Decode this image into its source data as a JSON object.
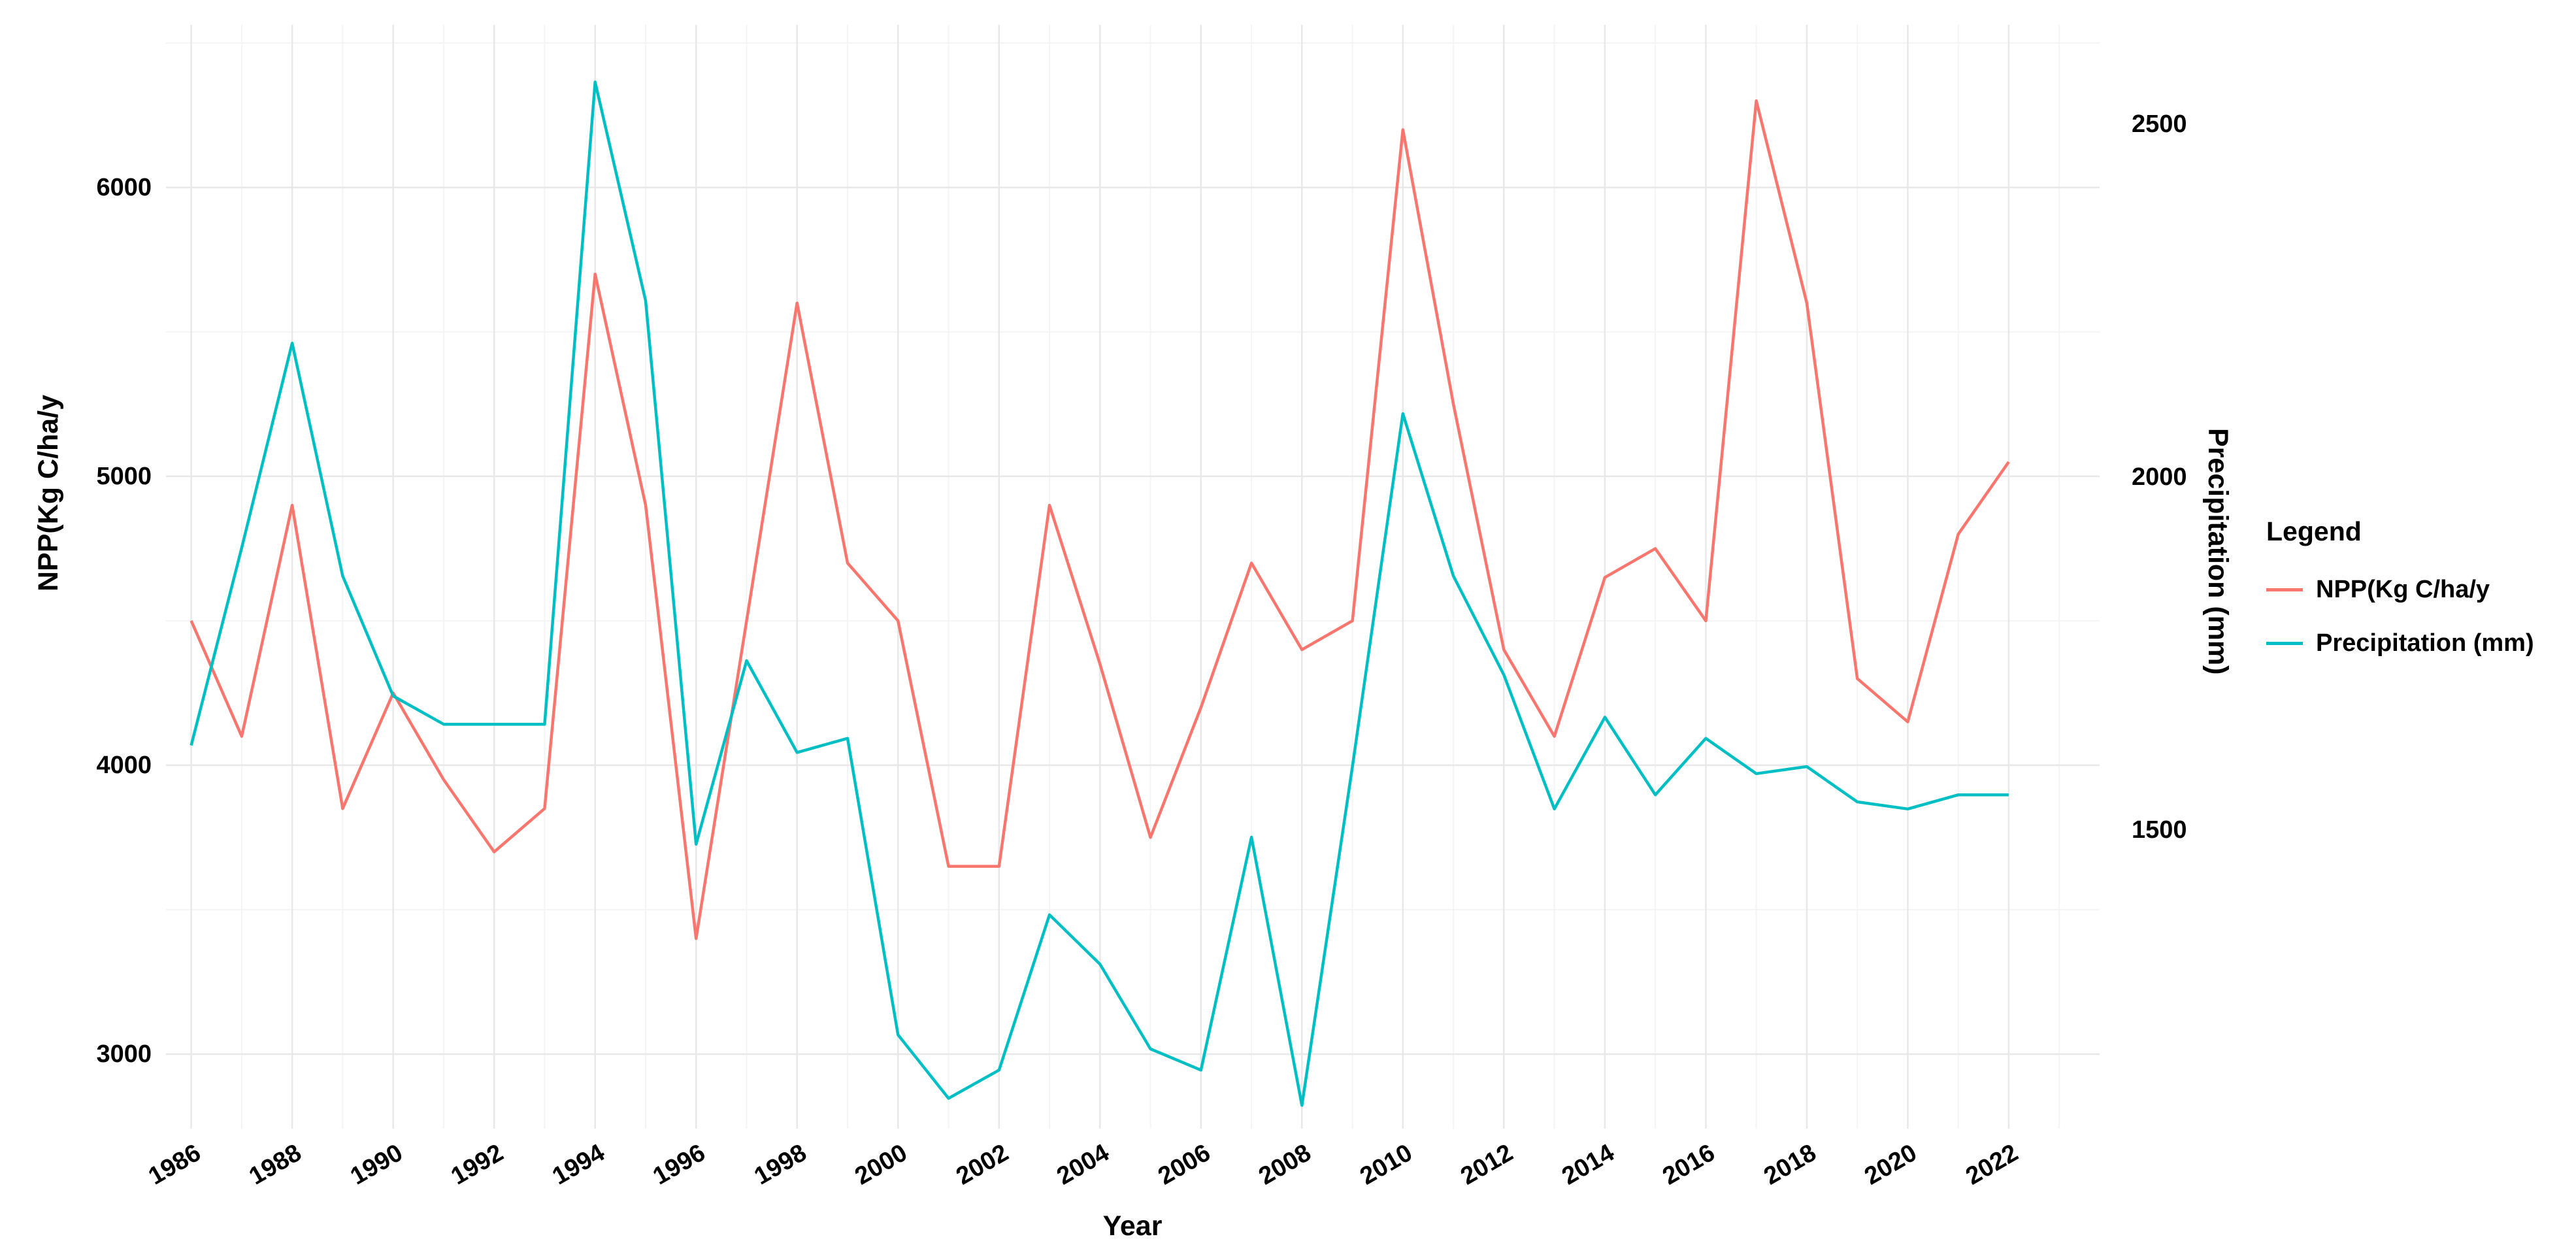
{
  "figure": {
    "legend": {
      "title": "Legend",
      "entries": [
        {
          "label": "NPP(Kg C/ha/y",
          "color": "#F8766D"
        },
        {
          "label": "Precipitation (mm)",
          "color": "#00BFC4"
        }
      ]
    },
    "colors": {
      "background": "#FFFFFF",
      "grid_major": "#E8E8E8",
      "grid_minor": "#F4F4F4",
      "text": "#000000",
      "npp_line": "#F8766D",
      "precip_line": "#00BFC4"
    }
  },
  "chart_data": {
    "type": "line",
    "title": "",
    "xlabel": "Year",
    "ylabel_left": "NPP(Kg C/ha/y",
    "ylabel_right": "Precipitation (mm)",
    "legend_position": "right",
    "grid": true,
    "x": [
      1986,
      1987,
      1988,
      1989,
      1990,
      1991,
      1992,
      1993,
      1994,
      1995,
      1996,
      1997,
      1998,
      1999,
      2000,
      2001,
      2002,
      2003,
      2004,
      2005,
      2006,
      2007,
      2008,
      2009,
      2010,
      2011,
      2012,
      2013,
      2014,
      2015,
      2016,
      2017,
      2018,
      2019,
      2020,
      2021,
      2022
    ],
    "x_ticks": [
      1986,
      1988,
      1990,
      1992,
      1994,
      1996,
      1998,
      2000,
      2002,
      2004,
      2006,
      2008,
      2010,
      2012,
      2014,
      2016,
      2018,
      2020,
      2022
    ],
    "x_range": [
      1985.5,
      2023.8
    ],
    "series": [
      {
        "name": "NPP(Kg C/ha/y",
        "axis": "left",
        "color": "#F8766D",
        "values": [
          4500,
          4100,
          4900,
          3850,
          4250,
          3950,
          3700,
          3850,
          5700,
          4900,
          3400,
          4500,
          5600,
          4700,
          4500,
          3650,
          3650,
          4900,
          4350,
          3750,
          4200,
          4700,
          4400,
          4500,
          6200,
          5250,
          4400,
          4100,
          4650,
          4750,
          4500,
          6300,
          5600,
          4300,
          4150,
          4800,
          5050
        ]
      },
      {
        "name": "Precipitation (mm)",
        "axis": "right",
        "color": "#00BFC4",
        "values": [
          1620,
          1900,
          2190,
          1860,
          1690,
          1650,
          1650,
          1650,
          2560,
          2250,
          1480,
          1740,
          1610,
          1630,
          1210,
          1120,
          1160,
          1380,
          1310,
          1190,
          1160,
          1490,
          1110,
          1590,
          2090,
          1860,
          1720,
          1530,
          1660,
          1550,
          1630,
          1580,
          1590,
          1540,
          1530,
          1550,
          1550
        ]
      }
    ],
    "left_axis": {
      "label": "NPP(Kg C/ha/y",
      "ticks": [
        3000,
        4000,
        5000,
        6000
      ],
      "minor": [
        3500,
        4500,
        5500,
        6500
      ],
      "range": [
        2742,
        6563
      ]
    },
    "right_axis": {
      "label": "Precipitation (mm)",
      "ticks": [
        1500,
        2000,
        2500
      ],
      "range": [
        1077,
        2641
      ]
    }
  }
}
